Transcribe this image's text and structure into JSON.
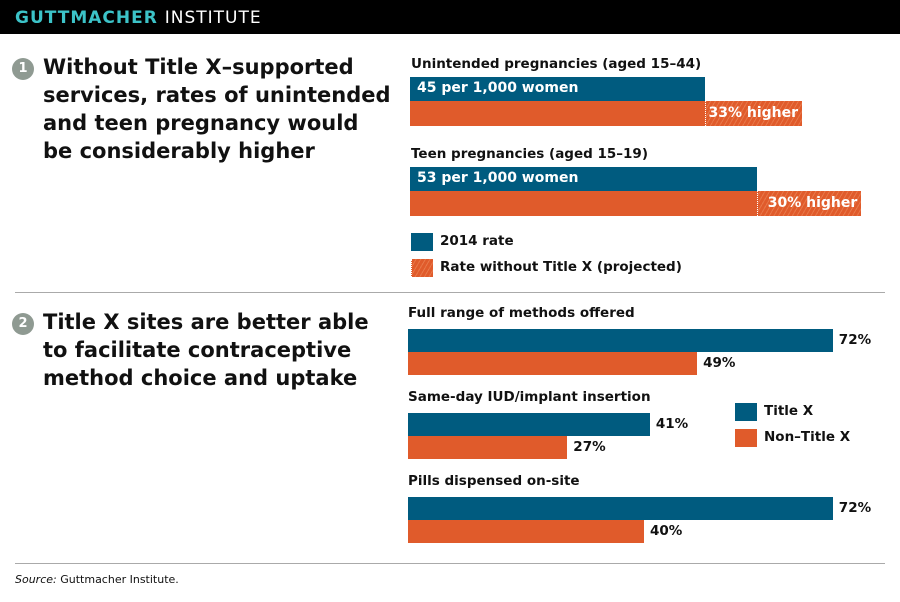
{
  "header": {
    "brand_bold": "GUTTMACHER",
    "brand_light": "INSTITUTE"
  },
  "colors": {
    "blue": "#005b7f",
    "orange": "#e05b2b",
    "teal": "#3cc3c8"
  },
  "section1": {
    "number": "1",
    "heading": "Without Title X–supported services, rates of unintended and teen pregnancy would be considerably higher"
  },
  "section2": {
    "number": "2",
    "heading": "Title X sites are better able to facilitate contraceptive method choice and uptake"
  },
  "chart_data": [
    {
      "type": "bar",
      "orientation": "horizontal",
      "unit": "per 1,000 women",
      "groups": [
        {
          "label": "Unintended pregnancies (aged 15–44)",
          "rate_2014": 45,
          "rate_label": "45 per 1,000 women",
          "increase_pct": 33,
          "increase_label": "33% higher"
        },
        {
          "label": "Teen pregnancies (aged 15–19)",
          "rate_2014": 53,
          "rate_label": "53 per 1,000 women",
          "increase_pct": 30,
          "increase_label": "30% higher"
        }
      ],
      "legend": [
        "2014 rate",
        "Rate without Title X (projected)"
      ]
    },
    {
      "type": "bar",
      "orientation": "horizontal",
      "unit": "%",
      "categories": [
        "Full range of methods offered",
        "Same-day IUD/implant insertion",
        "Pills dispensed on-site"
      ],
      "series": [
        {
          "name": "Title X",
          "values": [
            72,
            41,
            72
          ]
        },
        {
          "name": "Non–Title X",
          "values": [
            49,
            27,
            40
          ]
        }
      ],
      "value_labels": {
        "Title X": [
          "72%",
          "41%",
          "72%"
        ],
        "Non–Title X": [
          "49%",
          "27%",
          "40%"
        ]
      },
      "legend": [
        "Title X",
        "Non–Title X"
      ]
    }
  ],
  "source": {
    "label": "Source:",
    "text": " Guttmacher Institute."
  }
}
